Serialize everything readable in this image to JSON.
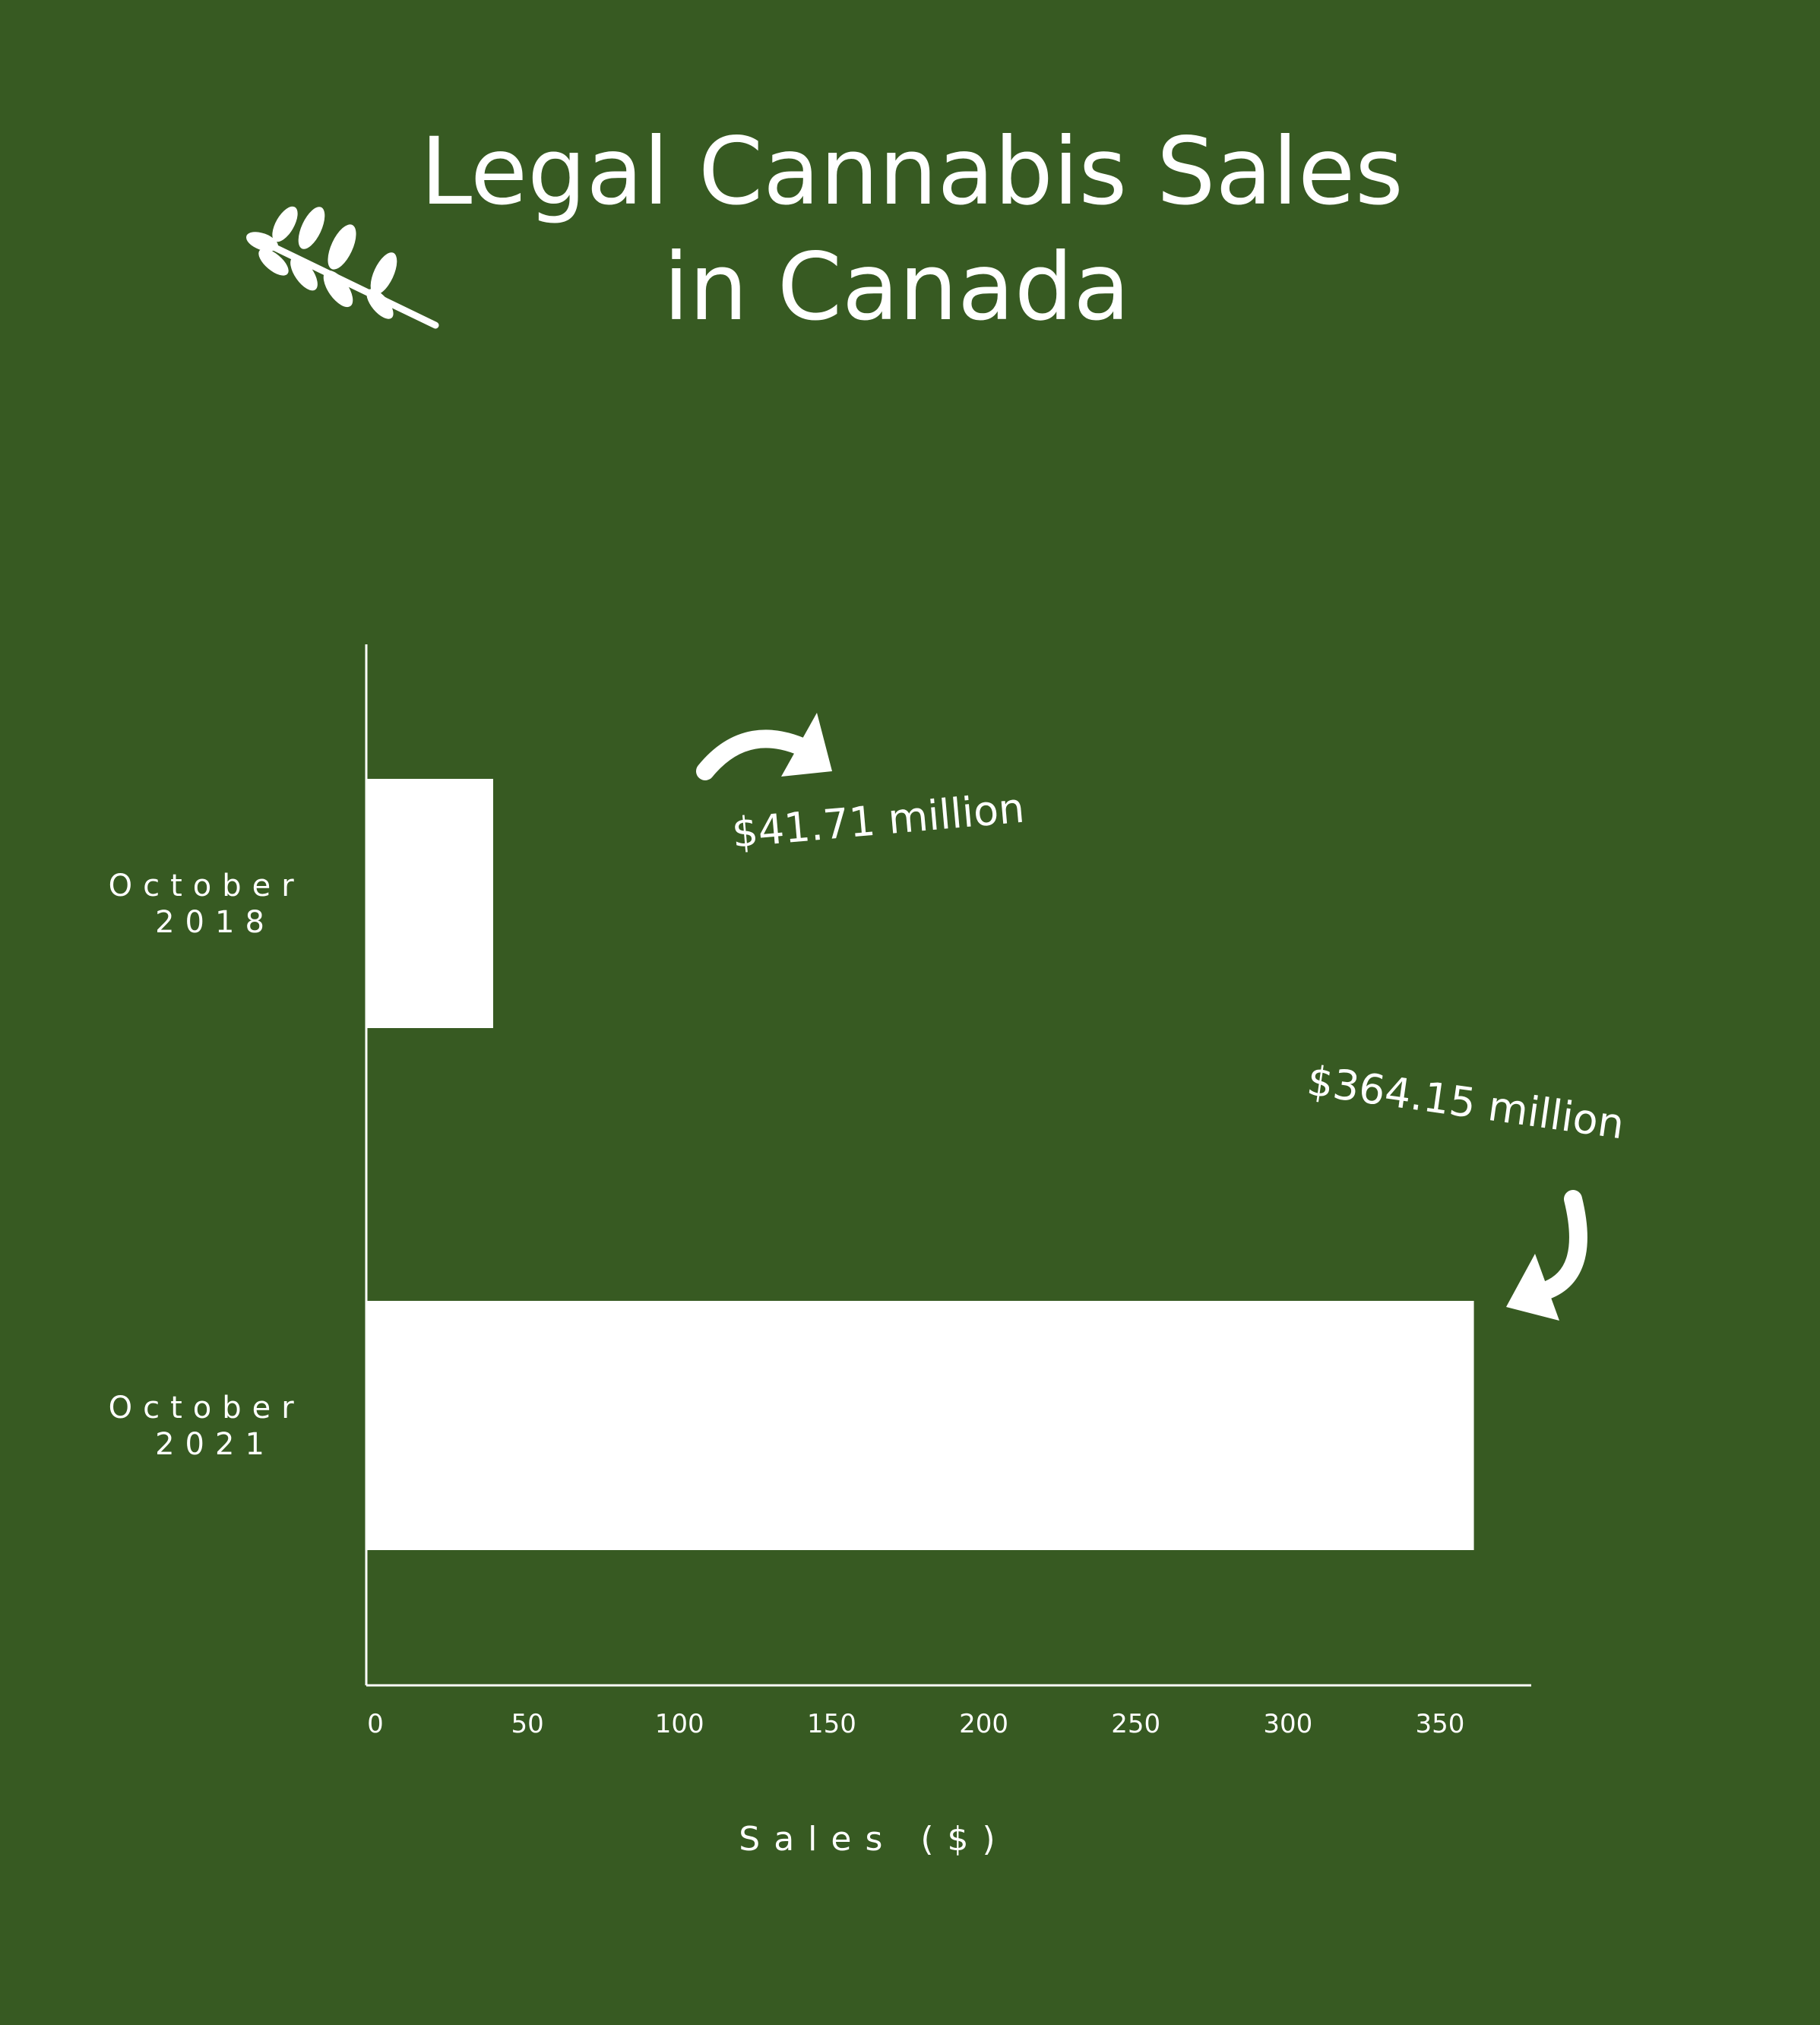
{
  "title": [
    "Legal Cannabis Sales",
    "in Canada"
  ],
  "icons": {
    "decoration": "leaf-branch-icon",
    "annotation_arrow": "curved-arrow-icon"
  },
  "colors": {
    "background": "#375a22",
    "foreground": "#ffffff"
  },
  "chart_data": {
    "type": "bar",
    "orientation": "horizontal",
    "categories": [
      [
        "October",
        "2018"
      ],
      [
        "October",
        "2021"
      ]
    ],
    "values": [
      41.71,
      364.15
    ],
    "annotations": [
      "$41.71 million",
      "$364.15 million"
    ],
    "xlabel": "Sales ($)",
    "ylabel": "",
    "xlim": [
      0,
      383
    ],
    "xticks": [
      0,
      50,
      100,
      150,
      200,
      250,
      300,
      350
    ],
    "grid": false,
    "legend": "none"
  }
}
